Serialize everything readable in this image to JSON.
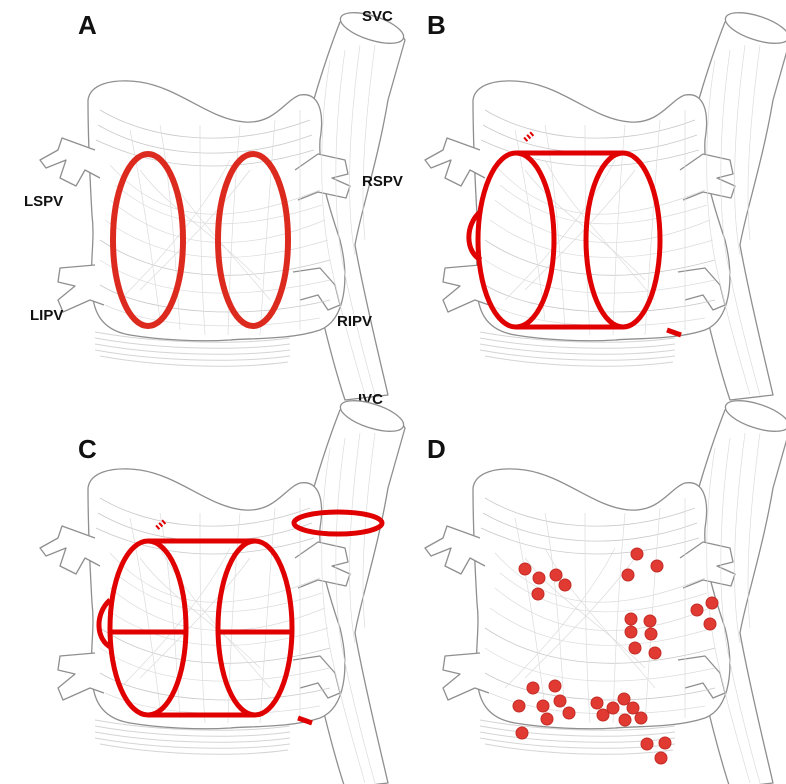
{
  "panels": [
    {
      "letter": "A"
    },
    {
      "letter": "B"
    },
    {
      "letter": "C"
    },
    {
      "letter": "D"
    }
  ],
  "vessel_labels": {
    "svc": "SVC",
    "ivc": "IVC",
    "lspv": "LSPV",
    "lipv": "LIPV",
    "rspv": "RSPV",
    "ripv": "RIPV"
  },
  "colors": {
    "ablation_line": "#e00000",
    "ablation_point": "#e03a33",
    "anatomy_outline": "#8f8f8f",
    "fiber": "#c9c9c9"
  },
  "icons": {
    "ablation_point": "red-dot",
    "ablation_lesion": "red-line"
  }
}
